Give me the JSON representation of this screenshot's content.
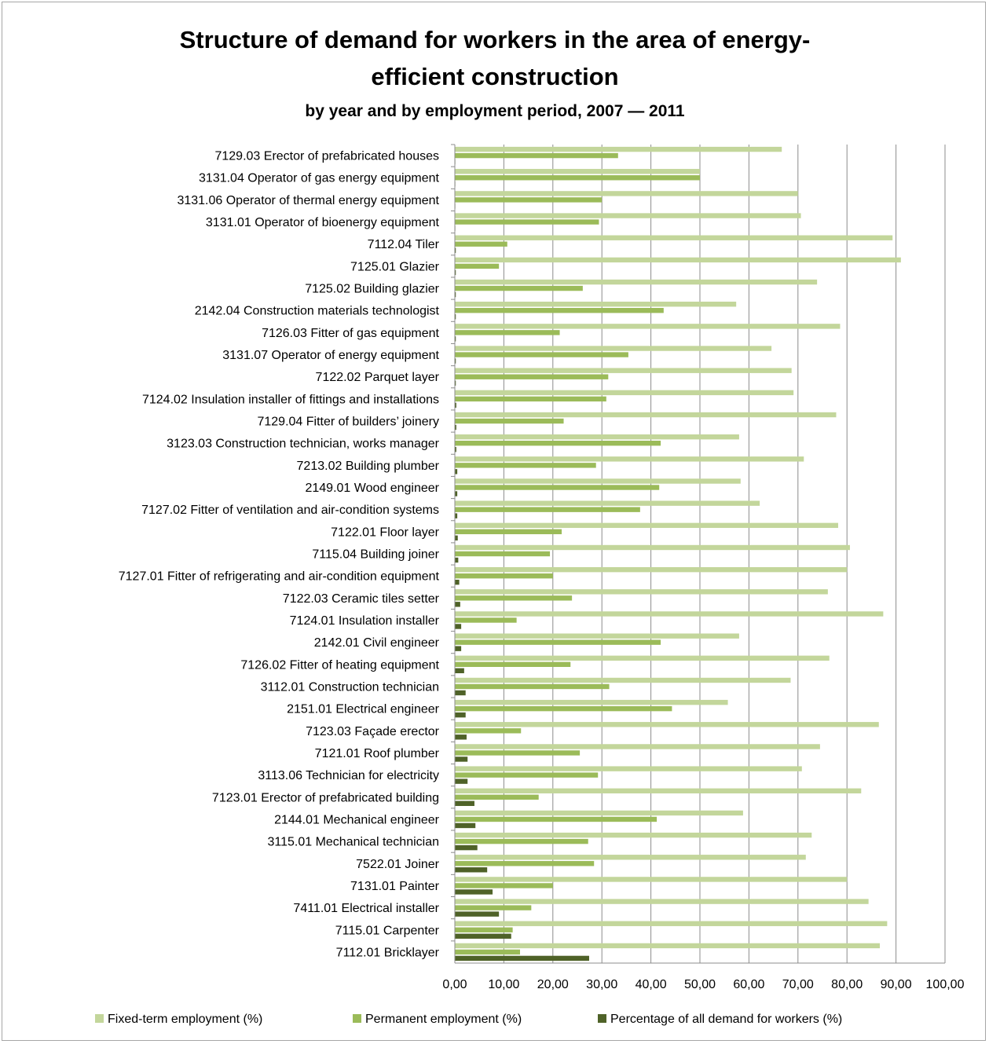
{
  "chart_data": {
    "type": "bar",
    "orientation": "horizontal",
    "title": "Structure of demand for workers in the area of energy-efficient construction",
    "title_line1": "Structure of demand for workers in the area of energy-",
    "title_line2": "efficient construction",
    "subtitle": "by year and by employment period, 2007 — 2011",
    "xlim": [
      0,
      100
    ],
    "xticks": [
      "0,00",
      "10,00",
      "20,00",
      "30,00",
      "40,00",
      "50,00",
      "60,00",
      "70,00",
      "80,00",
      "90,00",
      "100,00"
    ],
    "grid": true,
    "legend_position": "bottom",
    "categories": [
      "7129.03 Erector of prefabricated houses",
      "3131.04 Operator of gas energy equipment",
      "3131.06 Operator of thermal energy equipment",
      "3131.01 Operator of bioenergy equipment",
      "7112.04 Tiler",
      "7125.01 Glazier",
      "7125.02 Building glazier",
      "2142.04 Construction materials technologist",
      "7126.03 Fitter of gas equipment",
      "3131.07 Operator of energy equipment",
      "7122.02 Parquet layer",
      "7124.02 Insulation installer of fittings and installations",
      "7129.04 Fitter of builders’ joinery",
      "3123.03 Construction technician, works manager",
      "7213.02 Building plumber",
      "2149.01 Wood engineer",
      "7127.02 Fitter of ventilation and air-condition systems",
      "7122.01 Floor layer",
      "7115.04 Building joiner",
      "7127.01 Fitter of refrigerating and air-condition equipment",
      "7122.03 Ceramic tiles setter",
      "7124.01 Insulation installer",
      "2142.01 Civil engineer",
      "7126.02 Fitter of heating equipment",
      "3112.01 Construction technician",
      "2151.01 Electrical engineer",
      "7123.03 Façade erector",
      "7121.01 Roof plumber",
      "3113.06 Technician for electricity",
      "7123.01 Erector of prefabricated building",
      "2144.01 Mechanical engineer",
      "3115.01 Mechanical technician",
      "7522.01 Joiner",
      "7131.01 Painter",
      "7411.01 Electrical installer",
      "7115.01 Carpenter",
      "7112.01 Bricklayer"
    ],
    "series": [
      {
        "name": "Fixed-term employment (%)",
        "color": "#c3d69b",
        "values": [
          66.7,
          50.0,
          70.0,
          70.6,
          89.3,
          91.0,
          73.9,
          57.4,
          78.6,
          64.6,
          68.7,
          69.1,
          77.8,
          58.0,
          71.2,
          58.3,
          62.2,
          78.2,
          80.6,
          80.0,
          76.1,
          87.4,
          58.0,
          76.4,
          68.5,
          55.7,
          86.5,
          74.5,
          70.8,
          82.9,
          58.8,
          72.8,
          71.6,
          80.0,
          84.4,
          88.2,
          86.7
        ]
      },
      {
        "name": "Permanent employment (%)",
        "color": "#9bbb59",
        "values": [
          33.3,
          50.0,
          30.0,
          29.4,
          10.7,
          9.0,
          26.1,
          42.6,
          21.4,
          35.4,
          31.3,
          30.9,
          22.2,
          42.0,
          28.8,
          41.7,
          37.8,
          21.8,
          19.4,
          20.0,
          23.9,
          12.6,
          42.0,
          23.6,
          31.5,
          44.3,
          13.5,
          25.5,
          29.2,
          17.1,
          41.2,
          27.2,
          28.4,
          20.0,
          15.6,
          11.8,
          13.3
        ]
      },
      {
        "name": "Percentage  of all demand for workers (%)",
        "color": "#4f6228",
        "values": [
          0.1,
          0.1,
          0.1,
          0.1,
          0.2,
          0.2,
          0.2,
          0.2,
          0.2,
          0.2,
          0.2,
          0.3,
          0.3,
          0.3,
          0.5,
          0.5,
          0.5,
          0.6,
          0.7,
          0.9,
          1.1,
          1.3,
          1.3,
          1.9,
          2.2,
          2.2,
          2.4,
          2.6,
          2.6,
          4.0,
          4.2,
          4.6,
          6.6,
          7.7,
          9.0,
          11.5,
          27.4
        ]
      }
    ]
  }
}
